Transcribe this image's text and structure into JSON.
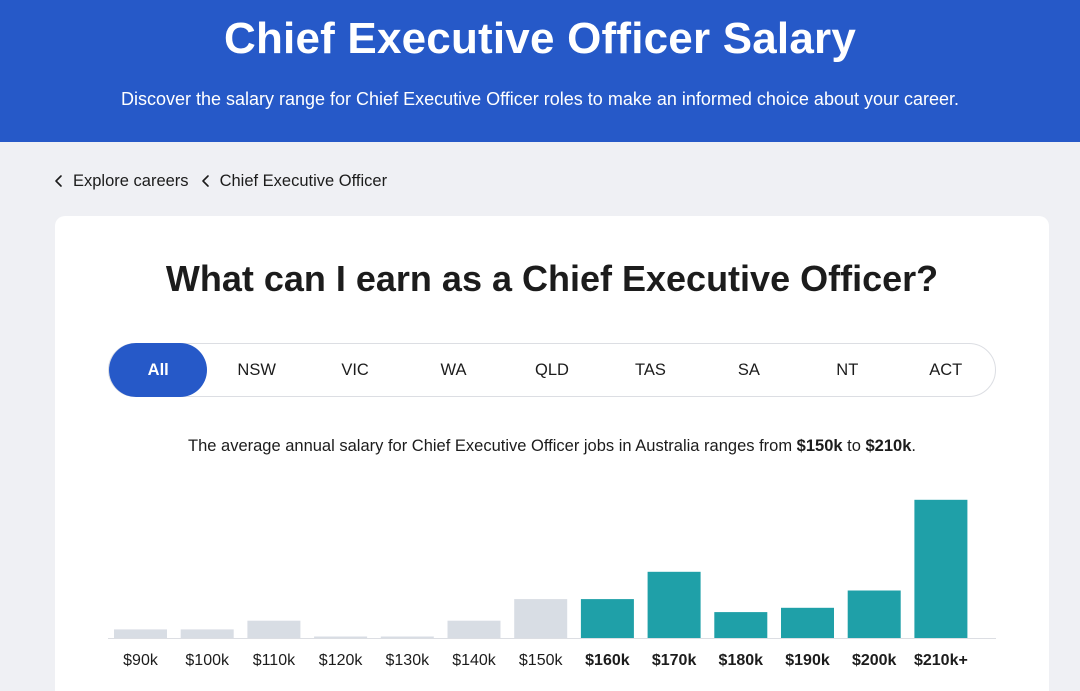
{
  "header": {
    "title": "Chief Executive Officer Salary",
    "subtitle": "Discover the salary range for Chief Executive Officer roles to make an informed choice about your career."
  },
  "breadcrumb": {
    "items": [
      {
        "label": "Explore careers",
        "icon": "chevron-left-icon"
      },
      {
        "label": "Chief Executive Officer",
        "icon": "chevron-left-icon"
      }
    ]
  },
  "card": {
    "heading": "What can I earn as a Chief Executive Officer?",
    "tabs": [
      {
        "label": "All",
        "active": true
      },
      {
        "label": "NSW"
      },
      {
        "label": "VIC"
      },
      {
        "label": "WA"
      },
      {
        "label": "QLD"
      },
      {
        "label": "TAS"
      },
      {
        "label": "SA"
      },
      {
        "label": "NT"
      },
      {
        "label": "ACT"
      }
    ],
    "summary": {
      "prefix": "The average annual salary for Chief Executive Officer jobs in Australia ranges from ",
      "low": "$150k",
      "middle": " to ",
      "high": "$210k",
      "suffix": "."
    }
  },
  "colors": {
    "header_bg": "#2659c8",
    "active_tab": "#2659c8",
    "bar_in_range": "#1fa0a8",
    "bar_out_of_range": "#d8dde4"
  },
  "chart_data": {
    "type": "bar",
    "categories": [
      "$90k",
      "$100k",
      "$110k",
      "$120k",
      "$130k",
      "$140k",
      "$150k",
      "$160k",
      "$170k",
      "$180k",
      "$190k",
      "$200k",
      "$210k+"
    ],
    "values": [
      6,
      6,
      12,
      1,
      1,
      12,
      27,
      27,
      46,
      18,
      21,
      33,
      96
    ],
    "highlighted": [
      false,
      false,
      false,
      false,
      false,
      false,
      false,
      true,
      true,
      true,
      true,
      true,
      true
    ],
    "xlabel": "",
    "ylabel": "",
    "ylim": [
      0,
      100
    ],
    "grid": false,
    "legend": "none"
  }
}
